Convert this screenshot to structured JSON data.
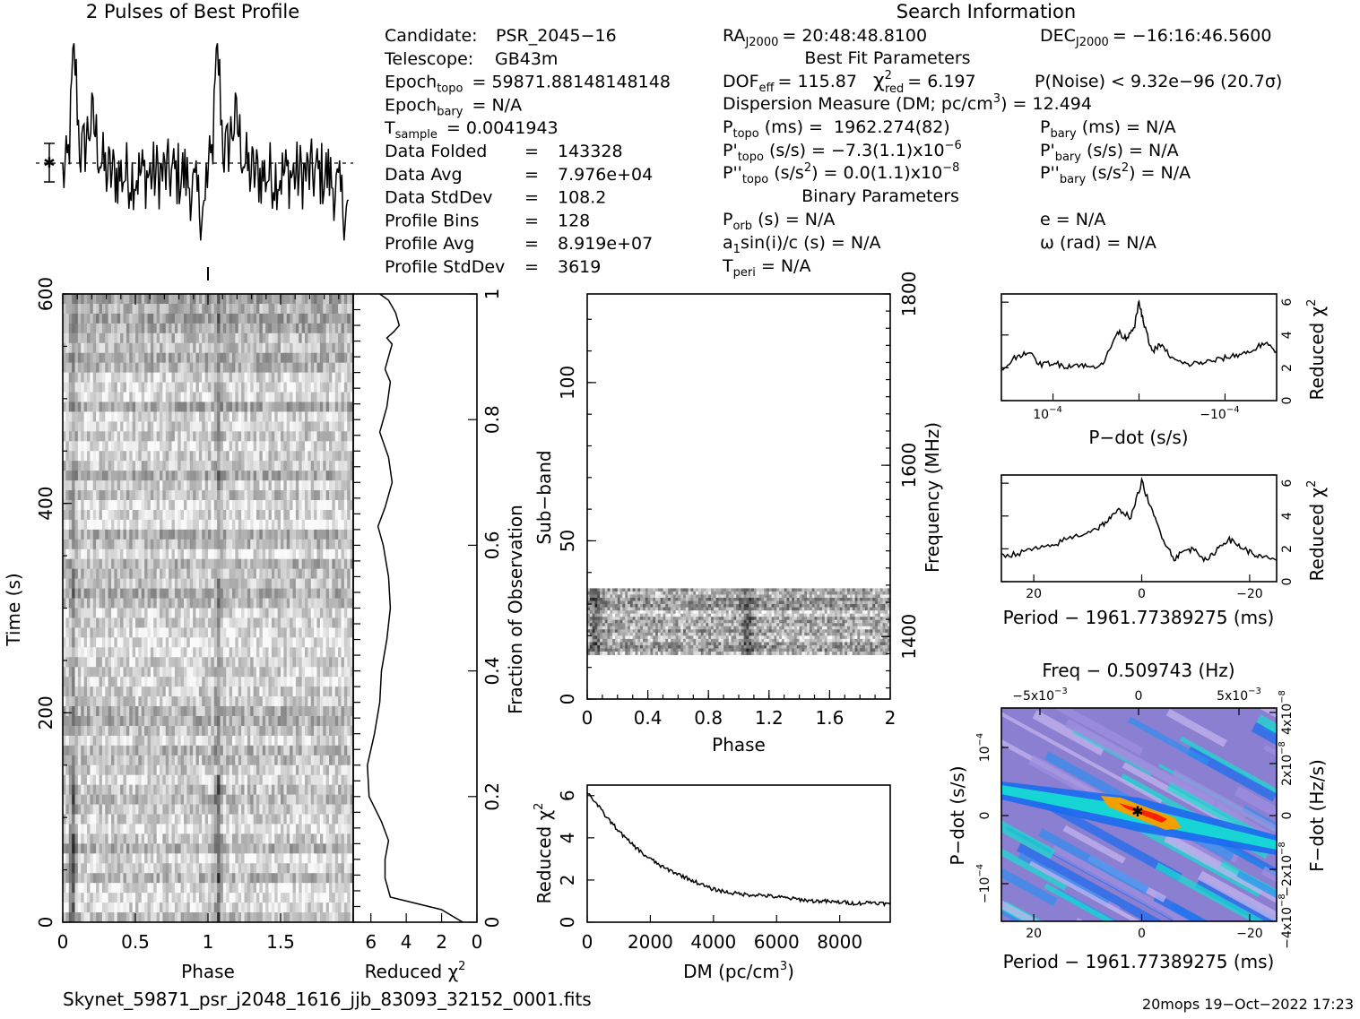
{
  "header": {
    "profile_title": "2 Pulses of Best Profile",
    "search_title": "Search Information"
  },
  "info_left": [
    {
      "label": "Candidate:",
      "value": "PSR_2045−16"
    },
    {
      "label": "Telescope:",
      "value": "GB43m"
    },
    {
      "label": "Epoch",
      "sub": "topo",
      "value": "= 59871.88148148148"
    },
    {
      "label": "Epoch",
      "sub": "bary",
      "value": "= N/A"
    },
    {
      "label": "T",
      "sub": "sample",
      "value": "=    0.0041943"
    },
    {
      "label": "Data Folded",
      "value": "=    143328"
    },
    {
      "label": "Data Avg",
      "value": "=    7.976e+04"
    },
    {
      "label": "Data StdDev",
      "value": "=    108.2"
    },
    {
      "label": "Profile Bins",
      "value": "=    128"
    },
    {
      "label": "Profile Avg",
      "value": "=    8.919e+07"
    },
    {
      "label": "Profile StdDev",
      "value": "=    3619"
    }
  ],
  "info_right": {
    "ra": "RA",
    "ra_sub": "J2000",
    "ra_value": "= 20:48:48.8100",
    "dec": "DEC",
    "dec_sub": "J2000",
    "dec_value": "= −16:16:46.5600",
    "best_fit_title": "Best Fit Parameters",
    "dof_line": "DOF",
    "dof_sub": "eff",
    "dof_value": "= 115.87",
    "chi_sym": "χ",
    "chi_sup": "2",
    "chi_sub": "red",
    "chi_value": "= 6.197",
    "pnoise": "P(Noise) < 9.32e−96  (20.7σ)",
    "dm_line": "Dispersion Measure (DM; pc/cm",
    "dm_sup": "3",
    "dm_value": ") = 12.494",
    "ptopo": "P",
    "ptopo_sub": "topo",
    "ptopo_value": " (ms) =  1962.274(82)",
    "pbary": "P",
    "pbary_sub": "bary",
    "pbary_value": " (ms) = N/A",
    "pdtopo": "P'",
    "pdtopo_sub": "topo",
    "pdtopo_value": " (s/s) = −7.3(1.1)x10",
    "pdtopo_exp": "−6",
    "pdbary": "P'",
    "pdbary_sub": "bary",
    "pdbary_value": " (s/s) = N/A",
    "pddtopo": "P''",
    "pddtopo_sub": "topo",
    "pddtopo_value": " (s/s",
    "pddtopo_sup": "2",
    "pddtopo_value2": ") = 0.0(1.1)x10",
    "pddtopo_exp": "−8",
    "pddbary": "P''",
    "pddbary_sub": "bary",
    "pddbary_value": " (s/s",
    "pddbary_sup": "2",
    "pddbary_value2": ") = N/A",
    "binary_title": "Binary Parameters",
    "porb": "P",
    "porb_sub": "orb",
    "porb_value": " (s) = N/A",
    "e_value": "e = N/A",
    "a1": "a",
    "a1_sub": "1",
    "a1_value": "sin(i)/c (s) = N/A",
    "omega_value": "ω (rad) = N/A",
    "tperi": "T",
    "tperi_sub": "peri",
    "tperi_value": " = N/A"
  },
  "footer": {
    "filename": "Skynet_59871_psr_j2048_1616_jjb_83093_32152_0001.fits",
    "stamp": "20mops 19−Oct−2022 17:23"
  },
  "colors": {
    "dd_background": "#8a7fd0",
    "dd_mid": "#1a6cf0",
    "dd_high": "#16e0d0",
    "dd_peak": "#f0a000"
  },
  "chart_data": [
    {
      "id": "profile",
      "type": "line",
      "title": "2 Pulses of Best Profile",
      "xlabel": "",
      "ylabel": "",
      "xlim": [
        0,
        2
      ],
      "note": "two repeated pulse profiles with dashed mean line and error bar"
    },
    {
      "id": "time_phase",
      "type": "heatmap",
      "xlabel": "Phase",
      "ylabel": "Time (s)",
      "xlim": [
        0,
        2
      ],
      "ylim": [
        0,
        600
      ],
      "xticks": [
        "0",
        "0.5",
        "1",
        "1.5"
      ],
      "yticks": [
        "0",
        "200",
        "400",
        "600"
      ],
      "colormap": "grayscale"
    },
    {
      "id": "time_chi",
      "type": "line",
      "xlabel": "Reduced χ",
      "xlabel_sup": "2",
      "ylabel": "Fraction of Observation",
      "xlim": [
        7,
        0
      ],
      "ylim": [
        0,
        1
      ],
      "xticks": [
        "6",
        "4",
        "2",
        "0"
      ],
      "yticks": [
        "0",
        "0.2",
        "0.4",
        "0.6",
        "0.8",
        "1"
      ],
      "x": [
        0.8,
        2.0,
        4.9,
        5.2,
        5.2,
        5.0,
        5.4,
        6.1,
        6.2,
        5.8,
        5.5,
        5.4,
        5.1,
        4.9,
        5.0,
        5.3,
        5.6,
        5.2,
        4.8,
        5.0,
        5.5,
        5.1,
        4.9,
        5.2,
        5.0,
        4.8,
        5.1,
        4.7,
        4.4,
        4.6,
        5.0,
        5.5
      ],
      "y": [
        0.0,
        0.02,
        0.04,
        0.07,
        0.1,
        0.13,
        0.16,
        0.2,
        0.25,
        0.3,
        0.35,
        0.4,
        0.45,
        0.5,
        0.55,
        0.6,
        0.63,
        0.66,
        0.7,
        0.74,
        0.78,
        0.82,
        0.86,
        0.88,
        0.9,
        0.92,
        0.93,
        0.94,
        0.95,
        0.97,
        0.99,
        1.0
      ]
    },
    {
      "id": "subband_phase",
      "type": "heatmap",
      "xlabel": "Phase",
      "ylabel": "Sub−band",
      "y2label": "Frequency (MHz)",
      "xlim": [
        0,
        2
      ],
      "ylim": [
        0,
        128
      ],
      "xticks": [
        "0",
        "0.4",
        "0.8",
        "1.2",
        "1.6",
        "2"
      ],
      "yticks": [
        "0",
        "50",
        "100"
      ],
      "y2ticks": [
        "1400",
        "1600",
        "1800"
      ],
      "active_subbands": [
        14,
        35
      ]
    },
    {
      "id": "dm_chi",
      "type": "line",
      "xlabel": "DM (pc/cm",
      "xlabel_sup": "3",
      "xlabel_end": ")",
      "ylabel": "Reduced χ",
      "ylabel_sup": "2",
      "xlim": [
        0,
        9600
      ],
      "ylim": [
        0,
        6.5
      ],
      "xticks": [
        "0",
        "2000",
        "4000",
        "6000",
        "8000"
      ],
      "yticks": [
        "0",
        "2",
        "4",
        "6"
      ],
      "x": [
        0,
        300,
        600,
        900,
        1200,
        1500,
        1800,
        2100,
        2400,
        2700,
        3000,
        3300,
        3600,
        3900,
        4200,
        4500,
        4800,
        5100,
        5400,
        5700,
        6000,
        6300,
        6600,
        6900,
        7200,
        7500,
        7800,
        8100,
        8400,
        8700,
        9000,
        9300,
        9600
      ],
      "y": [
        6.2,
        5.6,
        5.0,
        4.5,
        4.0,
        3.6,
        3.2,
        2.9,
        2.6,
        2.4,
        2.2,
        2.0,
        1.8,
        1.6,
        1.5,
        1.4,
        1.35,
        1.3,
        1.3,
        1.25,
        1.2,
        1.15,
        1.1,
        1.05,
        1.0,
        1.0,
        0.95,
        0.95,
        0.9,
        0.9,
        0.95,
        0.9,
        0.85
      ]
    },
    {
      "id": "pdot_chi",
      "type": "line",
      "xlabel": "P−dot (s/s)",
      "ylabel": "Reduced χ",
      "ylabel_sup": "2",
      "xlim": [
        0.00016,
        -0.00016
      ],
      "ylim": [
        0,
        6.5
      ],
      "xticks": [
        "10",
        "−10"
      ],
      "xtick_exp": "−4",
      "yticks": [
        "0",
        "2",
        "4",
        "6"
      ],
      "x": [
        0.00016,
        0.000145,
        0.00013,
        0.000115,
        0.0001,
        8.5e-05,
        7e-05,
        5.5e-05,
        4e-05,
        2.5e-05,
        1.5e-05,
        5e-06,
        0.0,
        -5e-06,
        -1.5e-05,
        -2.5e-05,
        -4e-05,
        -5.5e-05,
        -7e-05,
        -8.5e-05,
        -0.0001,
        -0.000115,
        -0.00013,
        -0.000145,
        -0.00016
      ],
      "y": [
        1.8,
        2.6,
        3.0,
        2.2,
        2.3,
        2.1,
        2.2,
        2.0,
        2.4,
        4.2,
        3.8,
        4.6,
        6.0,
        4.8,
        3.0,
        3.4,
        2.5,
        2.2,
        2.3,
        2.4,
        2.6,
        2.8,
        3.0,
        3.5,
        3.0
      ]
    },
    {
      "id": "period_chi",
      "type": "line",
      "xlabel": "Period − 1961.77389275 (ms)",
      "ylabel": "Reduced χ",
      "ylabel_sup": "2",
      "xlim": [
        26,
        -25
      ],
      "ylim": [
        0,
        6.5
      ],
      "xticks": [
        "20",
        "0",
        "−20"
      ],
      "yticks": [
        "0",
        "2",
        "4",
        "6"
      ],
      "x": [
        26,
        23,
        20,
        17,
        14,
        11,
        8,
        6,
        4,
        2,
        0,
        -2,
        -4,
        -6,
        -8,
        -10,
        -12,
        -14,
        -16,
        -18,
        -20,
        -22,
        -25
      ],
      "y": [
        1.6,
        1.7,
        2.0,
        2.1,
        2.6,
        2.9,
        3.3,
        3.8,
        4.4,
        3.9,
        6.1,
        4.2,
        2.6,
        1.4,
        1.9,
        2.0,
        1.2,
        2.0,
        2.6,
        2.2,
        1.8,
        1.5,
        1.3
      ]
    },
    {
      "id": "pdot_period_map",
      "type": "heatmap",
      "title": "Freq − 0.509743 (Hz)",
      "xlabel": "Period − 1961.77389275 (ms)",
      "ylabel": "P−dot (s/s)",
      "y2label": "F−dot (Hz/s)",
      "xlim": [
        26,
        -25
      ],
      "ylim": [
        0.00016,
        -0.00016
      ],
      "xticks": [
        "20",
        "0",
        "−20"
      ],
      "yticks_left": [
        "10",
        "0",
        "−10"
      ],
      "yticks_left_exp": "−4",
      "x2ticks": [
        "−5x10",
        "0",
        "5x10"
      ],
      "x2ticks_exp": "−3",
      "y2ticks": [
        "−4x10",
        "−2x10",
        "0",
        "2x10",
        "4x10"
      ],
      "y2ticks_exp": "−8",
      "peak": {
        "x": 0,
        "y": 0
      }
    }
  ]
}
